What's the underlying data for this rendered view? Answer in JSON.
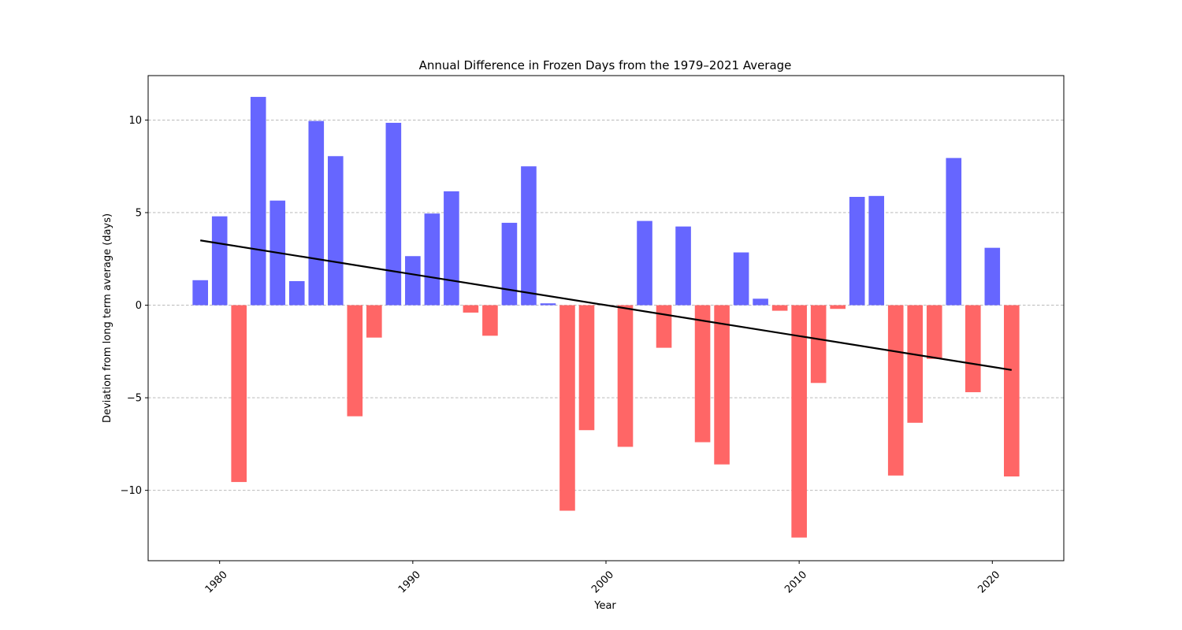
{
  "chart_data": {
    "type": "bar",
    "title": "Annual Difference in Frozen Days from the 1979–2021 Average",
    "xlabel": "Year",
    "ylabel": "Deviation from long term average (days)",
    "xlim": [
      1976.3,
      2023.7
    ],
    "ylim": [
      -13.8,
      12.4
    ],
    "xticks": [
      1980,
      1990,
      2000,
      2010,
      2020
    ],
    "yticks": [
      -10,
      -5,
      0,
      5,
      10
    ],
    "ytick_labels": [
      "−10",
      "−5",
      "0",
      "5",
      "10"
    ],
    "grid": "y",
    "colors": {
      "positive": "#6666ff",
      "negative": "#ff6666",
      "trend": "#000000"
    },
    "years": [
      1979,
      1980,
      1981,
      1982,
      1983,
      1984,
      1985,
      1986,
      1987,
      1988,
      1989,
      1990,
      1991,
      1992,
      1993,
      1994,
      1995,
      1996,
      1997,
      1998,
      1999,
      2000,
      2001,
      2002,
      2003,
      2004,
      2005,
      2006,
      2007,
      2008,
      2009,
      2010,
      2011,
      2012,
      2013,
      2014,
      2015,
      2016,
      2017,
      2018,
      2019,
      2020,
      2021
    ],
    "values": [
      1.35,
      4.8,
      -9.55,
      11.25,
      5.65,
      1.3,
      9.95,
      8.05,
      -6.0,
      -1.75,
      9.85,
      2.65,
      4.95,
      6.15,
      -0.4,
      -1.65,
      4.45,
      7.5,
      0.1,
      -11.1,
      -6.75,
      0.0,
      -7.65,
      4.55,
      -2.3,
      4.25,
      -7.4,
      -8.6,
      2.85,
      0.35,
      -0.3,
      -12.55,
      -4.2,
      -0.2,
      5.85,
      5.9,
      -9.2,
      -6.35,
      -2.9,
      7.95,
      -4.7,
      3.1,
      -9.25
    ],
    "trend_line": {
      "x": [
        1979,
        2021
      ],
      "y": [
        3.5,
        -3.5
      ]
    }
  }
}
